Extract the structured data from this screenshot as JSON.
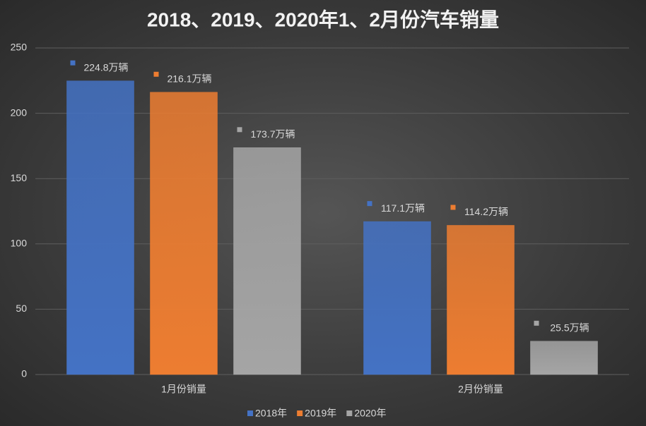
{
  "chart_data": {
    "type": "bar",
    "title": "2018、2019、2020年1、2月份汽车销量",
    "categories": [
      "1月份销量",
      "2月份销量"
    ],
    "series": [
      {
        "name": "2018年",
        "color": "#4472c4",
        "values": [
          224.8,
          117.1
        ],
        "value_labels": [
          "224.8万辆",
          "117.1万辆"
        ]
      },
      {
        "name": "2019年",
        "color": "#ed7d31",
        "values": [
          216.1,
          114.2
        ],
        "value_labels": [
          "216.1万辆",
          "114.2万辆"
        ]
      },
      {
        "name": "2020年",
        "color": "#a5a5a5",
        "values": [
          173.7,
          25.5
        ],
        "value_labels": [
          "173.7万辆",
          "25.5万辆"
        ]
      }
    ],
    "ylim": [
      0,
      250
    ],
    "yticks": [
      0,
      50,
      100,
      150,
      200,
      250
    ],
    "grid": true,
    "legend": "bottom"
  }
}
